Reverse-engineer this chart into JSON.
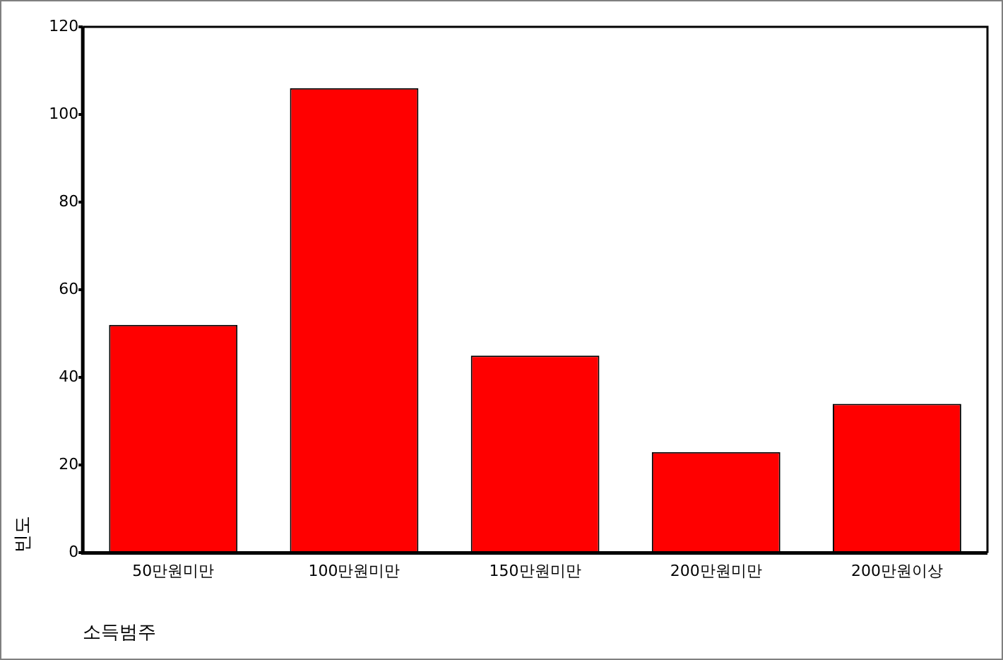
{
  "chart_data": {
    "type": "bar",
    "xlabel": "소득범주",
    "ylabel": "빈도",
    "categories": [
      "50만원미만",
      "100만원미만",
      "150만원미만",
      "200만원미만",
      "200만원이상"
    ],
    "values": [
      52,
      106,
      45,
      23,
      34
    ],
    "color": "#ff0000",
    "ylim": [
      0,
      120
    ],
    "yticks": [
      0,
      20,
      40,
      60,
      80,
      100,
      120
    ],
    "grid": false
  }
}
